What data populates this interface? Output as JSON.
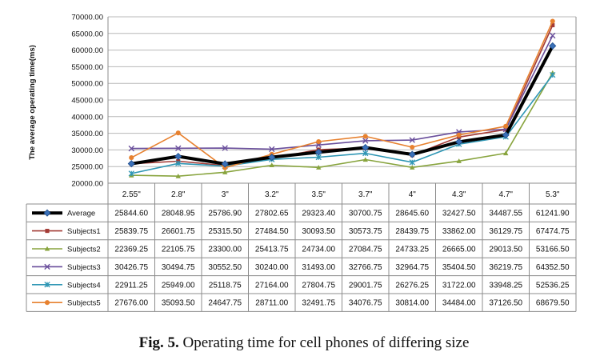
{
  "chart_data": {
    "type": "line",
    "title": "",
    "xlabel": "",
    "ylabel": "The average operating time(ms)",
    "ylim": [
      20000,
      70000
    ],
    "ytick_step": 5000,
    "ytick_labels": [
      "20000.00",
      "25000.00",
      "30000.00",
      "35000.00",
      "40000.00",
      "45000.00",
      "50000.00",
      "55000.00",
      "60000.00",
      "65000.00",
      "70000.00"
    ],
    "grid": true,
    "legend": "data-table-left",
    "categories": [
      "2.55\"",
      "2.8\"",
      "3\"",
      "3.2\"",
      "3.5\"",
      "3.7\"",
      "4\"",
      "4.3\"",
      "4.7\"",
      "5.3\""
    ],
    "series": [
      {
        "name": "Average",
        "color": "#000000",
        "marker": "diamond",
        "bold": true,
        "values": [
          25844.6,
          28048.95,
          25786.9,
          27802.65,
          29323.4,
          30700.75,
          28645.6,
          32427.5,
          34487.55,
          61241.9
        ],
        "labels": [
          "25844.60",
          "28048.95",
          "25786.90",
          "27802.65",
          "29323.40",
          "30700.75",
          "28645.60",
          "32427.50",
          "34487.55",
          "61241.90"
        ]
      },
      {
        "name": "Subjects1",
        "color": "#a33b36",
        "marker": "square",
        "values": [
          25839.75,
          26601.75,
          25315.5,
          27484.5,
          30093.5,
          30573.75,
          28439.75,
          33862.0,
          36129.75,
          67474.75
        ],
        "labels": [
          "25839.75",
          "26601.75",
          "25315.50",
          "27484.50",
          "30093.50",
          "30573.75",
          "28439.75",
          "33862.00",
          "36129.75",
          "67474.75"
        ]
      },
      {
        "name": "Subjects2",
        "color": "#88a43e",
        "marker": "triangle",
        "values": [
          22369.25,
          22105.75,
          23300.0,
          25413.75,
          24734.0,
          27084.75,
          24733.25,
          26665.0,
          29013.5,
          53166.5
        ],
        "labels": [
          "22369.25",
          "22105.75",
          "23300.00",
          "25413.75",
          "24734.00",
          "27084.75",
          "24733.25",
          "26665.00",
          "29013.50",
          "53166.50"
        ]
      },
      {
        "name": "Subjects3",
        "color": "#6a4f9c",
        "marker": "x",
        "values": [
          30426.75,
          30494.75,
          30552.5,
          30240.0,
          31493.0,
          32766.75,
          32964.75,
          35404.5,
          36219.75,
          64352.5
        ],
        "labels": [
          "30426.75",
          "30494.75",
          "30552.50",
          "30240.00",
          "31493.00",
          "32766.75",
          "32964.75",
          "35404.50",
          "36219.75",
          "64352.50"
        ]
      },
      {
        "name": "Subjects4",
        "color": "#2e96b4",
        "marker": "star",
        "values": [
          22911.25,
          25949.0,
          25118.75,
          27164.0,
          27804.75,
          29001.75,
          26276.25,
          31722.0,
          33948.25,
          52536.25
        ],
        "labels": [
          "22911.25",
          "25949.00",
          "25118.75",
          "27164.00",
          "27804.75",
          "29001.75",
          "26276.25",
          "31722.00",
          "33948.25",
          "52536.25"
        ]
      },
      {
        "name": "Subjects5",
        "color": "#e7812f",
        "marker": "circle",
        "values": [
          27676.0,
          35093.5,
          24647.75,
          28711.0,
          32491.75,
          34076.75,
          30814.0,
          34484.0,
          37126.5,
          68679.5
        ],
        "labels": [
          "27676.00",
          "35093.50",
          "24647.75",
          "28711.00",
          "32491.75",
          "34076.75",
          "30814.00",
          "34484.00",
          "37126.50",
          "68679.50"
        ]
      }
    ]
  },
  "caption": {
    "label": "Fig. 5.",
    "text": "Operating time for cell phones of differing size"
  }
}
